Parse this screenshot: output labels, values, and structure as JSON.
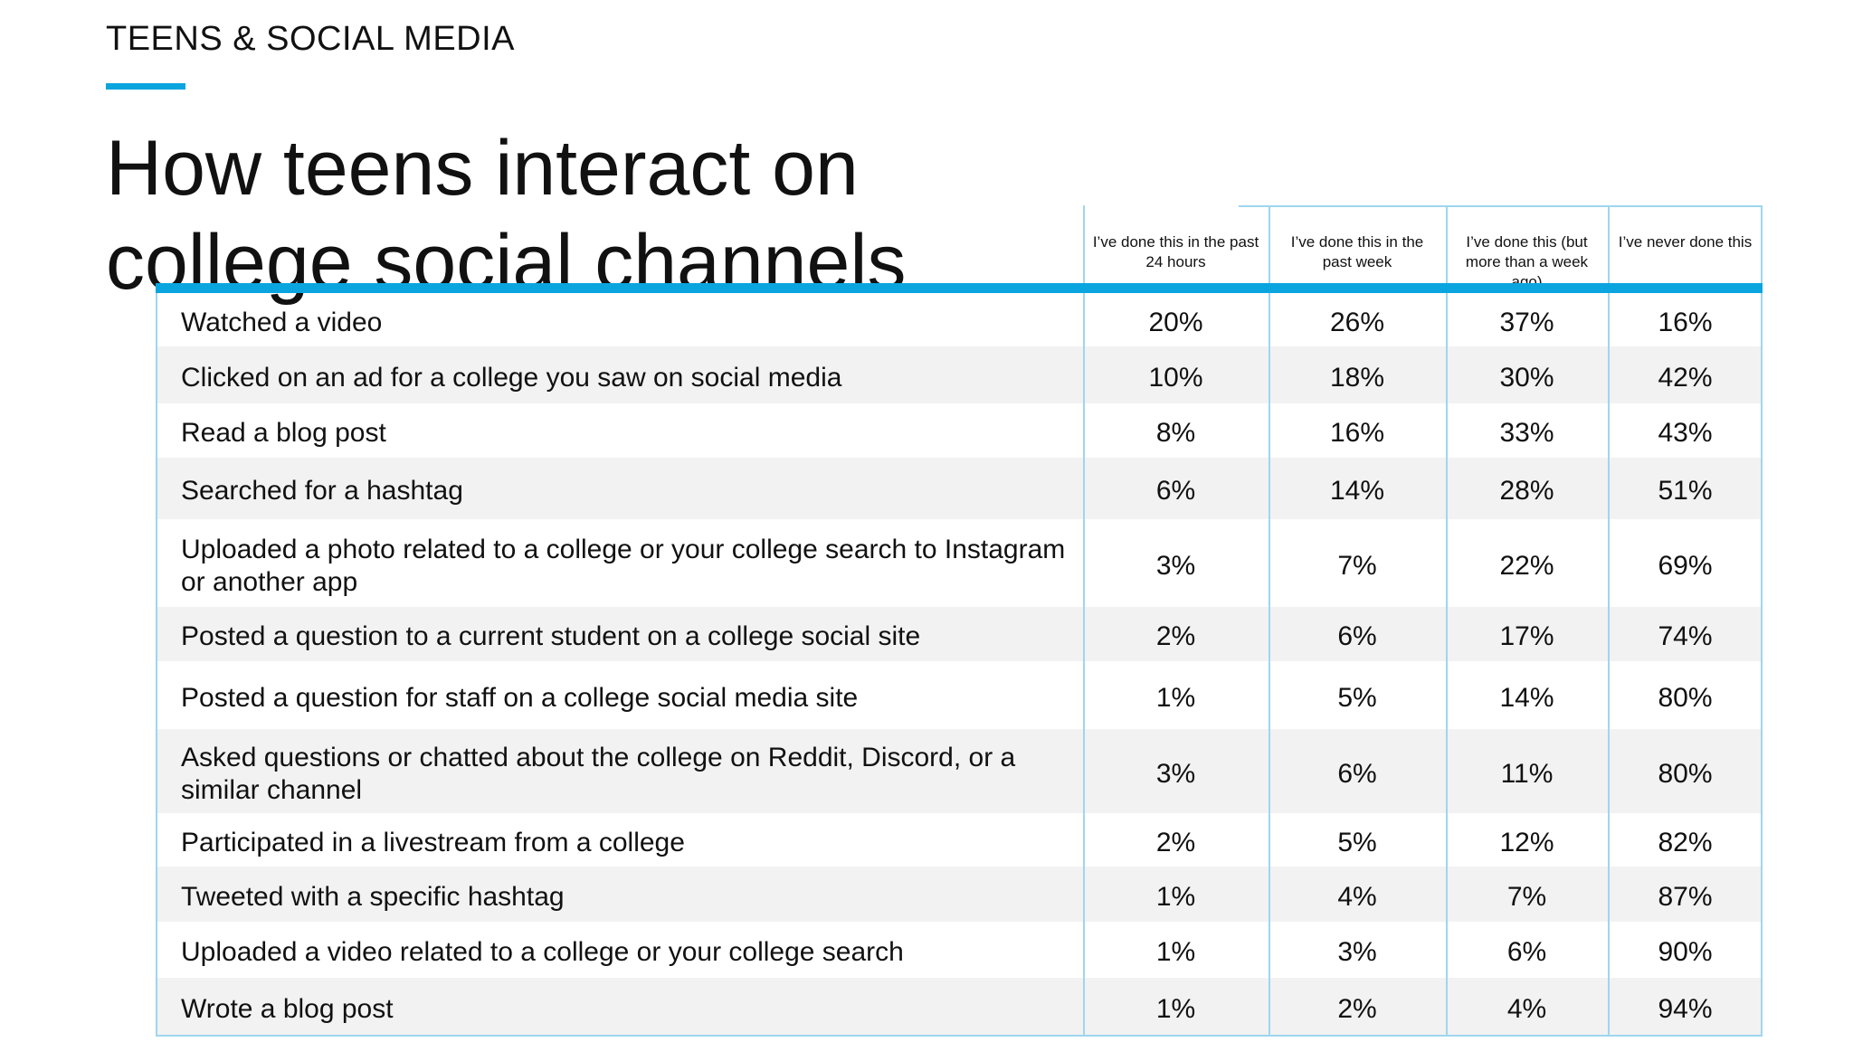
{
  "eyebrow": "TEENS & SOCIAL MEDIA",
  "title": "How teens interact on college social channels",
  "accent_color": "#0aa5df",
  "columns": [
    "I’ve done this in the past 24 hours",
    "I’ve done this in the past week",
    "I’ve done this (but more than a week ago)",
    "I’ve never done this"
  ],
  "rows": [
    {
      "label": "Watched a video",
      "values": [
        "20%",
        "26%",
        "37%",
        "16%"
      ]
    },
    {
      "label": "Clicked on an ad for a college you saw on social media",
      "values": [
        "10%",
        "18%",
        "30%",
        "42%"
      ]
    },
    {
      "label": "Read a blog post",
      "values": [
        "8%",
        "16%",
        "33%",
        "43%"
      ]
    },
    {
      "label": "Searched for a hashtag",
      "values": [
        "6%",
        "14%",
        "28%",
        "51%"
      ]
    },
    {
      "label": "Uploaded a photo related to a college or your college search to Instagram or another app",
      "values": [
        "3%",
        "7%",
        "22%",
        "69%"
      ]
    },
    {
      "label": "Posted a question to a current student on a college social site",
      "values": [
        "2%",
        "6%",
        "17%",
        "74%"
      ]
    },
    {
      "label": "Posted a question for staff on a college social media site",
      "values": [
        "1%",
        "5%",
        "14%",
        "80%"
      ]
    },
    {
      "label": "Asked questions or chatted about the college on Reddit, Discord, or a similar channel",
      "values": [
        "3%",
        "6%",
        "11%",
        "80%"
      ]
    },
    {
      "label": "Participated in a livestream from a college",
      "values": [
        "2%",
        "5%",
        "12%",
        "82%"
      ]
    },
    {
      "label": "Tweeted with a specific hashtag",
      "values": [
        "1%",
        "4%",
        "7%",
        "87%"
      ]
    },
    {
      "label": "Uploaded a video related to a college or your college search",
      "values": [
        "1%",
        "3%",
        "6%",
        "90%"
      ]
    },
    {
      "label": "Wrote a blog post",
      "values": [
        "1%",
        "2%",
        "4%",
        "94%"
      ]
    }
  ]
}
